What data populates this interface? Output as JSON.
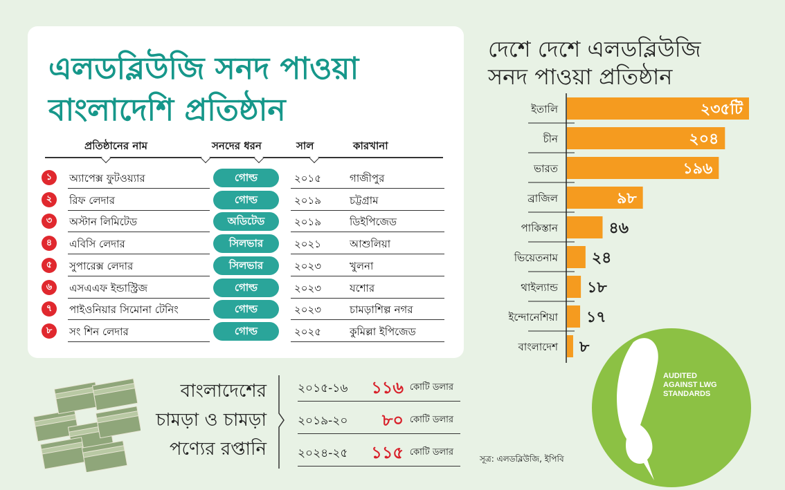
{
  "card": {
    "title_line1": "এলডব্লিউজি সনদ পাওয়া",
    "title_line2": "বাংলাদেশি প্রতিষ্ঠান",
    "headers": [
      "প্রতিষ্ঠানের নাম",
      "সনদের ধরন",
      "সাল",
      "কারখানা"
    ],
    "rows": [
      {
        "no": "১",
        "name": "অ্যাপেক্স ফুটওয়্যার",
        "type": "গোল্ড",
        "year": "২০১৫",
        "factory": "গাজীপুর"
      },
      {
        "no": "২",
        "name": "রিফ লেদার",
        "type": "গোল্ড",
        "year": "২০১৯",
        "factory": "চট্টগ্রাম"
      },
      {
        "no": "৩",
        "name": "অস্টান লিমিটেড",
        "type": "অডিটেড",
        "year": "২০১৯",
        "factory": "ডিইপিজেড"
      },
      {
        "no": "৪",
        "name": "এবিসি লেদার",
        "type": "সিলভার",
        "year": "২০২১",
        "factory": "আশুলিয়া"
      },
      {
        "no": "৫",
        "name": "সুপারেক্স লেদার",
        "type": "সিলভার",
        "year": "২০২৩",
        "factory": "খুলনা"
      },
      {
        "no": "৬",
        "name": "এসএএফ ইন্ডাস্ট্রিজ",
        "type": "গোল্ড",
        "year": "২০২৩",
        "factory": "যশোর"
      },
      {
        "no": "৭",
        "name": "পাইওনিয়ার সিমোনা টেনিং",
        "type": "গোল্ড",
        "year": "২০২৩",
        "factory": "চামড়াশিল্প নগর"
      },
      {
        "no": "৮",
        "name": "সং শিন লেদার",
        "type": "গোল্ড",
        "year": "২০২৫",
        "factory": "কুমিল্লা ইপিজেড"
      }
    ]
  },
  "chart_data": {
    "type": "bar",
    "orientation": "horizontal",
    "title_line1": "দেশে দেশে এলডব্লিউজি",
    "title_line2": "সনদ পাওয়া প্রতিষ্ঠান",
    "categories": [
      "ইতালি",
      "চীন",
      "ভারত",
      "ব্রাজিল",
      "পাকিস্তান",
      "ভিয়েতনাম",
      "থাইল্যান্ড",
      "ইন্দোনেশিয়া",
      "বাংলাদেশ"
    ],
    "values": [
      235,
      204,
      196,
      98,
      46,
      24,
      18,
      17,
      8
    ],
    "data_labels": [
      "২৩৫টি",
      "২০৪",
      "১৯৬",
      "৯৮",
      "৪৬",
      "২৪",
      "১৮",
      "১৭",
      "৮"
    ],
    "bar_color": "#f59b1f"
  },
  "exports": {
    "label_lines": [
      "বাংলাদেশের",
      "চামড়া ও চামড়া",
      "পণ্যের রপ্তানি"
    ],
    "rows": [
      {
        "year": "২০১৫-১৬",
        "value": "১১৬",
        "unit": "কোটি ডলার"
      },
      {
        "year": "২০১৯-২০",
        "value": "৮০",
        "unit": "কোটি ডলার"
      },
      {
        "year": "২০২৪-২৫",
        "value": "১১৫",
        "unit": "কোটি ডলার"
      }
    ]
  },
  "badge": {
    "lines": [
      "AUDITED",
      "AGAINST LWG",
      "STANDARDS"
    ],
    "color": "#8cc144"
  },
  "source": "সূত্র: এলডব্লিউজি, ইপিবি"
}
